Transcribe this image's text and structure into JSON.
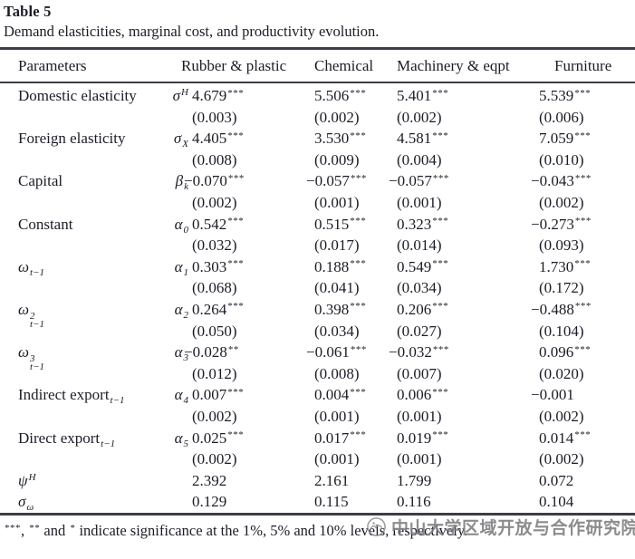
{
  "title": "Table 5",
  "subtitle": "Demand elasticities, marginal cost, and productivity evolution.",
  "header": {
    "parameters": "Parameters",
    "columns": [
      "Rubber & plastic",
      "Chemical",
      "Machinery & eqpt",
      "Furniture"
    ]
  },
  "rows": [
    {
      "label": {
        "text": "Domestic elasticity",
        "italic": false
      },
      "symbol": {
        "base": "σ",
        "sup": "H"
      },
      "values": [
        "4.679***",
        "5.506***",
        "5.401***",
        "5.539***"
      ],
      "se": [
        "(0.003)",
        "(0.002)",
        "(0.002)",
        "(0.006)"
      ]
    },
    {
      "label": {
        "text": "Foreign elasticity",
        "italic": false
      },
      "symbol": {
        "base": "σ",
        "sub": "X"
      },
      "values": [
        "4.405***",
        "3.530***",
        "4.581***",
        "7.059***"
      ],
      "se": [
        "(0.008)",
        "(0.009)",
        "(0.004)",
        "(0.010)"
      ]
    },
    {
      "label": {
        "text": "Capital",
        "italic": false
      },
      "symbol": {
        "base": "β",
        "sub": "k"
      },
      "values": [
        "−0.070***",
        "−0.057***",
        "−0.057***",
        "−0.043***"
      ],
      "se": [
        "(0.002)",
        "(0.001)",
        "(0.001)",
        "(0.002)"
      ]
    },
    {
      "label": {
        "text": "Constant",
        "italic": false
      },
      "symbol": {
        "base": "α",
        "sub": "0"
      },
      "values": [
        "0.542***",
        "0.515***",
        "0.323***",
        "−0.273***"
      ],
      "se": [
        "(0.032)",
        "(0.017)",
        "(0.014)",
        "(0.093)"
      ]
    },
    {
      "label": {
        "text": "ω",
        "sub": "t−1",
        "italic": true
      },
      "symbol": {
        "base": "α",
        "sub": "1"
      },
      "values": [
        "0.303***",
        "0.188***",
        "0.549***",
        "1.730***"
      ],
      "se": [
        "(0.068)",
        "(0.041)",
        "(0.034)",
        "(0.172)"
      ]
    },
    {
      "label": {
        "text": "ω",
        "sup": "2",
        "sub": "t−1",
        "italic": true
      },
      "symbol": {
        "base": "α",
        "sub": "2"
      },
      "values": [
        "0.264***",
        "0.398***",
        "0.206***",
        "−0.488***"
      ],
      "se": [
        "(0.050)",
        "(0.034)",
        "(0.027)",
        "(0.104)"
      ]
    },
    {
      "label": {
        "text": "ω",
        "sup": "3",
        "sub": "t−1",
        "italic": true
      },
      "symbol": {
        "base": "α",
        "sub": "3"
      },
      "values": [
        "−0.028**",
        "−0.061***",
        "−0.032***",
        "0.096***"
      ],
      "se": [
        "(0.012)",
        "(0.008)",
        "(0.007)",
        "(0.020)"
      ]
    },
    {
      "label": {
        "text": "Indirect export",
        "sub": "t−1",
        "italic": false
      },
      "symbol": {
        "base": "α",
        "sub": "4"
      },
      "values": [
        "0.007***",
        "0.004***",
        "0.006***",
        "−0.001"
      ],
      "se": [
        "(0.002)",
        "(0.001)",
        "(0.001)",
        "(0.002)"
      ]
    },
    {
      "label": {
        "text": "Direct export",
        "sub": "t−1",
        "italic": false
      },
      "symbol": {
        "base": "α",
        "sub": "5"
      },
      "values": [
        "0.025***",
        "0.017***",
        "0.019***",
        "0.014***"
      ],
      "se": [
        "(0.002)",
        "(0.001)",
        "(0.001)",
        "(0.002)"
      ]
    },
    {
      "label": {
        "text": "ψ",
        "sup": "H",
        "italic": true
      },
      "symbol": null,
      "values": [
        "2.392",
        "2.161",
        "1.799",
        "0.072"
      ],
      "se": null
    },
    {
      "label": {
        "text": "σ",
        "sub": "ω",
        "italic": true
      },
      "symbol": null,
      "values": [
        "0.129",
        "0.115",
        "0.116",
        "0.104"
      ],
      "se": null
    }
  ],
  "footnote": "***, ** and * indicate significance at the 1%, 5% and 10% levels, respectively.",
  "watermark": {
    "icon": "seal-logo-icon",
    "text": "中山大学区域开放与合作研究院",
    "color": "#808082"
  },
  "colors": {
    "text": "#1c1c28",
    "rule": "#3d3d47",
    "background": "#ffffff"
  }
}
